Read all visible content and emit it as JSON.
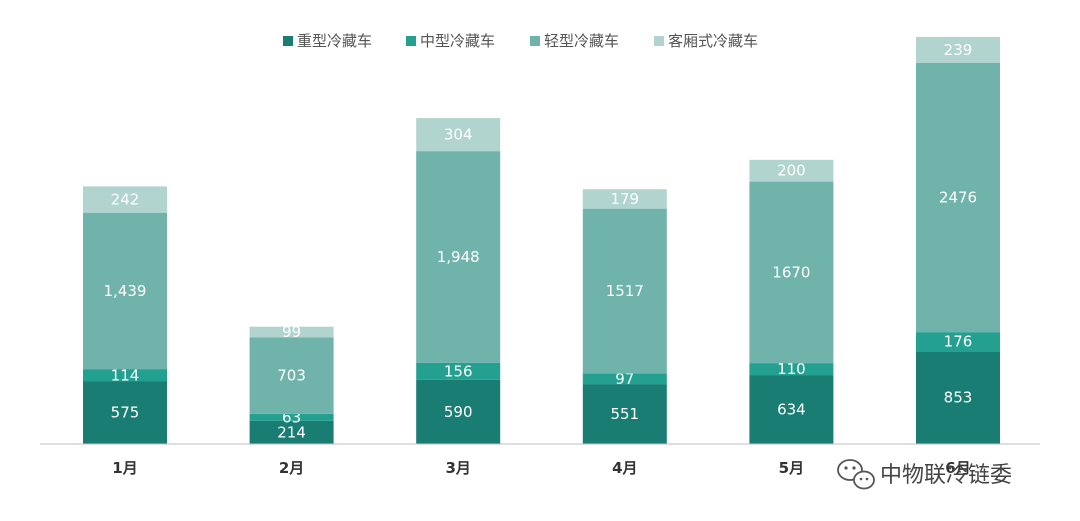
{
  "chart_data": {
    "type": "bar",
    "stacked": true,
    "categories": [
      "1月",
      "2月",
      "3月",
      "4月",
      "5月",
      "6月"
    ],
    "series": [
      {
        "name": "重型冷藏车",
        "color": "#1a7d74",
        "values": [
          575,
          214,
          590,
          551,
          634,
          853
        ],
        "labels": [
          "575",
          "214",
          "590",
          "551",
          "634",
          "853"
        ]
      },
      {
        "name": "中型冷藏车",
        "color": "#23a08f",
        "values": [
          114,
          63,
          156,
          97,
          110,
          176
        ],
        "labels": [
          "114",
          "63",
          "156",
          "97",
          "110",
          "176"
        ]
      },
      {
        "name": "轻型冷藏车",
        "color": "#6fb3aa",
        "values": [
          1439,
          703,
          1948,
          1517,
          1670,
          2476
        ],
        "labels": [
          "1,439",
          "703",
          "1,948",
          "1517",
          "1670",
          "2476"
        ]
      },
      {
        "name": "客厢式冷藏车",
        "color": "#b1d4cf",
        "values": [
          242,
          99,
          304,
          179,
          200,
          239
        ],
        "labels": [
          "242",
          "99",
          "304",
          "179",
          "200",
          "239"
        ]
      }
    ],
    "ylim": [
      0,
      3744
    ],
    "grid": false,
    "legend_position": "top"
  },
  "watermark": {
    "text": "中物联冷链委",
    "icon": "wechat-icon"
  }
}
